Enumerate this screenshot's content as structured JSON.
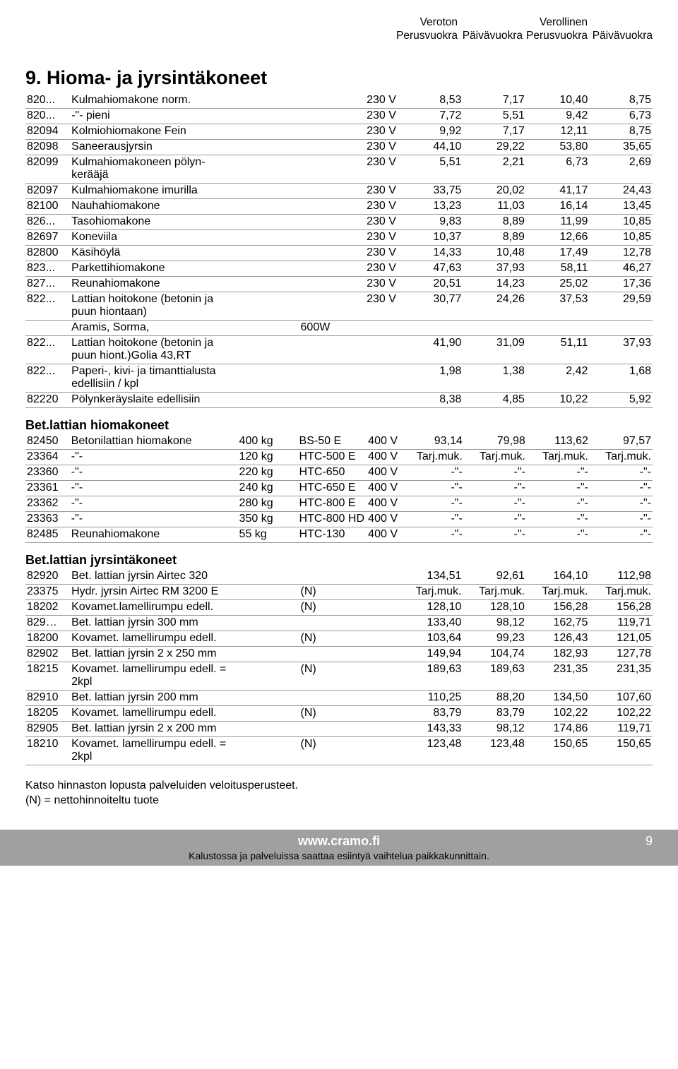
{
  "colors": {
    "border": "#9a9a9a",
    "footer_bg": "#a0a0a0",
    "footer_fg": "#ffffff",
    "text": "#000000",
    "bg": "#ffffff"
  },
  "fonts": {
    "body_family": "Arial Narrow",
    "title_size_pt": 20,
    "subtitle_size_pt": 13,
    "row_size_pt": 12
  },
  "header": {
    "group1_line1": "Veroton",
    "group2_line1": "Verollinen",
    "col1": "Perusvuokra",
    "col2": "Päivävuokra",
    "col3": "Perusvuokra",
    "col4": "Päivävuokra"
  },
  "section_title": "9. Hioma- ja jyrsintäkoneet",
  "subsections": [
    {
      "title": null,
      "rows": [
        {
          "code": "820...",
          "desc": "Kulmahiomakone norm.",
          "ex1": "",
          "ex2": "",
          "volt": "230 V",
          "v": [
            "8,53",
            "7,17",
            "10,40",
            "8,75"
          ]
        },
        {
          "code": "820...",
          "desc": "-\"-      pieni",
          "ex1": "",
          "ex2": "",
          "volt": "230 V",
          "v": [
            "7,72",
            "5,51",
            "9,42",
            "6,73"
          ]
        },
        {
          "code": "82094",
          "desc": "Kolmiohiomakone Fein",
          "ex1": "",
          "ex2": "",
          "volt": "230 V",
          "v": [
            "9,92",
            "7,17",
            "12,11",
            "8,75"
          ]
        },
        {
          "code": "82098",
          "desc": "Saneerausjyrsin",
          "ex1": "",
          "ex2": "",
          "volt": "230 V",
          "v": [
            "44,10",
            "29,22",
            "53,80",
            "35,65"
          ]
        },
        {
          "code": "82099",
          "desc": "Kulmahiomakoneen pölyn-\nkerääjä",
          "ex1": "",
          "ex2": "",
          "volt": "230 V",
          "v": [
            "5,51",
            "2,21",
            "6,73",
            "2,69"
          ]
        },
        {
          "code": "82097",
          "desc": "Kulmahiomakone imurilla",
          "ex1": "",
          "ex2": "",
          "volt": "230 V",
          "v": [
            "33,75",
            "20,02",
            "41,17",
            "24,43"
          ]
        },
        {
          "code": "82100",
          "desc": "Nauhahiomakone",
          "ex1": "",
          "ex2": "",
          "volt": "230 V",
          "v": [
            "13,23",
            "11,03",
            "16,14",
            "13,45"
          ]
        },
        {
          "code": "826...",
          "desc": "Tasohiomakone",
          "ex1": "",
          "ex2": "",
          "volt": "230 V",
          "v": [
            "9,83",
            "8,89",
            "11,99",
            "10,85"
          ]
        },
        {
          "code": "82697",
          "desc": "Koneviila",
          "ex1": "",
          "ex2": "",
          "volt": "230 V",
          "v": [
            "10,37",
            "8,89",
            "12,66",
            "10,85"
          ]
        },
        {
          "code": "82800",
          "desc": "Käsihöylä",
          "ex1": "",
          "ex2": "",
          "volt": "230 V",
          "v": [
            "14,33",
            "10,48",
            "17,49",
            "12,78"
          ]
        },
        {
          "code": "823...",
          "desc": "Parkettihiomakone",
          "ex1": "",
          "ex2": "",
          "volt": "230 V",
          "v": [
            "47,63",
            "37,93",
            "58,11",
            "46,27"
          ]
        },
        {
          "code": "827...",
          "desc": "Reunahiomakone",
          "ex1": "",
          "ex2": "",
          "volt": "230 V",
          "v": [
            "20,51",
            "14,23",
            "25,02",
            "17,36"
          ]
        },
        {
          "code": "822...",
          "desc": "Lattian hoitokone (betonin ja\npuun hiontaan)",
          "ex1": "",
          "ex2": "",
          "volt": "230 V",
          "v": [
            "30,77",
            "24,26",
            "37,53",
            "29,59"
          ]
        },
        {
          "code": "",
          "desc": "Aramis, Sorma,",
          "ex1": "",
          "ex2": "600W",
          "volt": "",
          "v": [
            "",
            "",
            "",
            ""
          ]
        },
        {
          "code": "822...",
          "desc": "Lattian hoitokone (betonin ja\npuun hiont.)Golia 43,RT",
          "ex1": "",
          "ex2": "",
          "volt": "",
          "v": [
            "41,90",
            "31,09",
            "51,11",
            "37,93"
          ]
        },
        {
          "code": "822...",
          "desc": "Paperi-, kivi- ja timanttialusta\nedellisiin / kpl",
          "ex1": "",
          "ex2": "",
          "volt": "",
          "v": [
            "1,98",
            "1,38",
            "2,42",
            "1,68"
          ]
        },
        {
          "code": "82220",
          "desc": "Pölynkeräyslaite edellisiin",
          "ex1": "",
          "ex2": "",
          "volt": "",
          "v": [
            "8,38",
            "4,85",
            "10,22",
            "5,92"
          ]
        }
      ]
    },
    {
      "title": "Bet.lattian hiomakoneet",
      "rows": [
        {
          "code": "82450",
          "desc": "Betonilattian hiomakone",
          "ex1": "400 kg",
          "ex2": "BS-50 E",
          "volt": "400 V",
          "v": [
            "93,14",
            "79,98",
            "113,62",
            "97,57"
          ]
        },
        {
          "code": "23364",
          "desc": "-\"-",
          "ex1": "120 kg",
          "ex2": "HTC-500 E",
          "volt": "400 V",
          "v": [
            "Tarj.muk.",
            "Tarj.muk.",
            "Tarj.muk.",
            "Tarj.muk."
          ]
        },
        {
          "code": "23360",
          "desc": "-\"-",
          "ex1": "220 kg",
          "ex2": "HTC-650",
          "volt": "400 V",
          "v": [
            "-\"-",
            "-\"-",
            "-\"-",
            "-\"-"
          ]
        },
        {
          "code": "23361",
          "desc": "-\"-",
          "ex1": "240 kg",
          "ex2": "HTC-650 E",
          "volt": "400 V",
          "v": [
            "-\"-",
            "-\"-",
            "-\"-",
            "-\"-"
          ]
        },
        {
          "code": "23362",
          "desc": "-\"-",
          "ex1": "280 kg",
          "ex2": "HTC-800 E",
          "volt": "400 V",
          "v": [
            "-\"-",
            "-\"-",
            "-\"-",
            "-\"-"
          ]
        },
        {
          "code": "23363",
          "desc": "-\"-",
          "ex1": "350 kg",
          "ex2": "HTC-800 HD",
          "volt": "400 V",
          "v": [
            "-\"-",
            "-\"-",
            "-\"-",
            "-\"-"
          ]
        },
        {
          "code": "82485",
          "desc": "Reunahiomakone",
          "ex1": "55 kg",
          "ex2": "HTC-130",
          "volt": "400 V",
          "v": [
            "-\"-",
            "-\"-",
            "-\"-",
            "-\"-"
          ]
        }
      ]
    },
    {
      "title": "Bet.lattian jyrsintäkoneet",
      "rows": [
        {
          "code": "82920",
          "desc": "Bet. lattian jyrsin Airtec 320",
          "ex1": "",
          "ex2": "",
          "volt": "",
          "v": [
            "134,51",
            "92,61",
            "164,10",
            "112,98"
          ]
        },
        {
          "code": "23375",
          "desc": "Hydr. jyrsin Airtec RM 3200 E",
          "ex1": "",
          "ex2": "(N)",
          "volt": "",
          "v": [
            "Tarj.muk.",
            "Tarj.muk.",
            "Tarj.muk.",
            "Tarj.muk."
          ]
        },
        {
          "code": "18202",
          "desc": "Kovamet.lamellirumpu edell.",
          "ex1": "",
          "ex2": "(N)",
          "volt": "",
          "v": [
            "128,10",
            "128,10",
            "156,28",
            "156,28"
          ]
        },
        {
          "code": "829…",
          "desc": "Bet. lattian jyrsin  300 mm",
          "ex1": "",
          "ex2": "",
          "volt": "",
          "v": [
            "133,40",
            "98,12",
            "162,75",
            "119,71"
          ]
        },
        {
          "code": "18200",
          "desc": "Kovamet. lamellirumpu edell.",
          "ex1": "",
          "ex2": "(N)",
          "volt": "",
          "v": [
            "103,64",
            "99,23",
            "126,43",
            "121,05"
          ]
        },
        {
          "code": "82902",
          "desc": "Bet. lattian jyrsin  2 x 250 mm",
          "ex1": "",
          "ex2": "",
          "volt": "",
          "v": [
            "149,94",
            "104,74",
            "182,93",
            "127,78"
          ]
        },
        {
          "code": "18215",
          "desc": "Kovamet. lamellirumpu edell.  = 2kpl",
          "ex1": "",
          "ex2": "(N)",
          "volt": "",
          "v": [
            "189,63",
            "189,63",
            "231,35",
            "231,35"
          ]
        },
        {
          "code": "82910",
          "desc": "Bet. lattian jyrsin  200 mm",
          "ex1": "",
          "ex2": "",
          "volt": "",
          "v": [
            "110,25",
            "88,20",
            "134,50",
            "107,60"
          ]
        },
        {
          "code": "18205",
          "desc": "Kovamet. lamellirumpu edell.",
          "ex1": "",
          "ex2": "(N)",
          "volt": "",
          "v": [
            "83,79",
            "83,79",
            "102,22",
            "102,22"
          ]
        },
        {
          "code": "82905",
          "desc": "Bet. lattian jyrsin  2 x 200 mm",
          "ex1": "",
          "ex2": "",
          "volt": "",
          "v": [
            "143,33",
            "98,12",
            "174,86",
            "119,71"
          ]
        },
        {
          "code": "18210",
          "desc": "Kovamet. lamellirumpu edell.  = 2kpl",
          "ex1": "",
          "ex2": "(N)",
          "volt": "",
          "v": [
            "123,48",
            "123,48",
            "150,65",
            "150,65"
          ]
        }
      ]
    }
  ],
  "footnote_line1": "Katso hinnaston lopusta palveluiden veloitusperusteet.",
  "footnote_line2": "(N) = nettohinnoiteltu tuote",
  "footer": {
    "url": "www.cramo.fi",
    "disclaimer": "Kalustossa ja palveluissa saattaa esiintyä vaihtelua paikkakunnittain.",
    "page": "9"
  }
}
